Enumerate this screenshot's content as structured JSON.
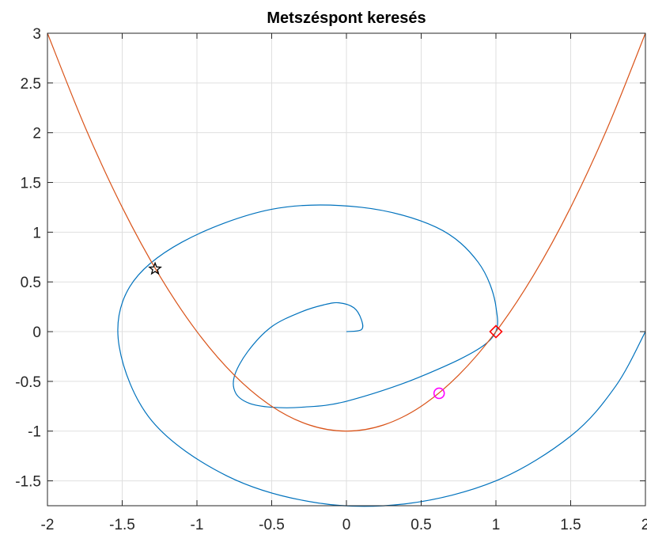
{
  "chart_data": {
    "type": "line",
    "title": "Metszéspont keresés",
    "xlabel": "",
    "ylabel": "",
    "xlim": [
      -2,
      2
    ],
    "ylim": [
      -1.75,
      3
    ],
    "x_ticks": [
      -2,
      -1.5,
      -1,
      -0.5,
      0,
      0.5,
      1,
      1.5,
      2
    ],
    "x_tick_labels": [
      "-2",
      "-1.5",
      "-1",
      "-0.5",
      "0",
      "0.5",
      "1",
      "1.5",
      "2"
    ],
    "y_ticks": [
      -1.5,
      -1,
      -0.5,
      0,
      0.5,
      1,
      1.5,
      2,
      2.5,
      3
    ],
    "y_tick_labels": [
      "-1.5",
      "-1",
      "-0.5",
      "0",
      "0.5",
      "1",
      "1.5",
      "2",
      "2.5",
      "3"
    ],
    "grid": true,
    "series": [
      {
        "kind": "spiral",
        "color": "#0072bd",
        "x": [
          0,
          0.1,
          0.1,
          0.05,
          -0.05,
          -0.15,
          -0.3,
          -0.5,
          -0.66,
          -0.75,
          -0.74,
          -0.65,
          -0.5,
          -0.3,
          0,
          0.5,
          0.95,
          1.0,
          0.88,
          0.6,
          0.1,
          -0.5,
          -1.1,
          -1.45,
          -1.52,
          -1.3,
          -0.8,
          -0.2,
          0.4,
          1.0,
          1.5,
          1.8,
          2.0
        ],
        "y": [
          0,
          0.02,
          0.12,
          0.24,
          0.29,
          0.27,
          0.2,
          0.05,
          -0.2,
          -0.45,
          -0.62,
          -0.72,
          -0.76,
          -0.76,
          -0.7,
          -0.45,
          -0.1,
          0.25,
          0.7,
          1.05,
          1.25,
          1.23,
          0.9,
          0.45,
          -0.15,
          -0.9,
          -1.45,
          -1.72,
          -1.73,
          -1.5,
          -1.05,
          -0.55,
          0
        ]
      },
      {
        "kind": "parabola",
        "color": "#d95319",
        "x": [
          -2,
          -1.75,
          -1.5,
          -1.25,
          -1,
          -0.75,
          -0.5,
          -0.25,
          0,
          0.25,
          0.5,
          0.75,
          1,
          1.25,
          1.5,
          1.75,
          2
        ],
        "y": [
          3,
          2.0625,
          1.25,
          0.5625,
          0,
          -0.4375,
          -0.75,
          -0.9375,
          -1,
          -0.9375,
          -0.75,
          -0.4375,
          0,
          0.5625,
          1.25,
          2.0625,
          3
        ]
      }
    ],
    "markers": [
      {
        "shape": "star",
        "color": "#000000",
        "x": -1.28,
        "y": 0.63
      },
      {
        "shape": "circle",
        "color": "#ff00ff",
        "x": 0.62,
        "y": -0.62
      },
      {
        "shape": "diamond",
        "color": "#ff0000",
        "x": 1.0,
        "y": 0.0
      }
    ]
  }
}
